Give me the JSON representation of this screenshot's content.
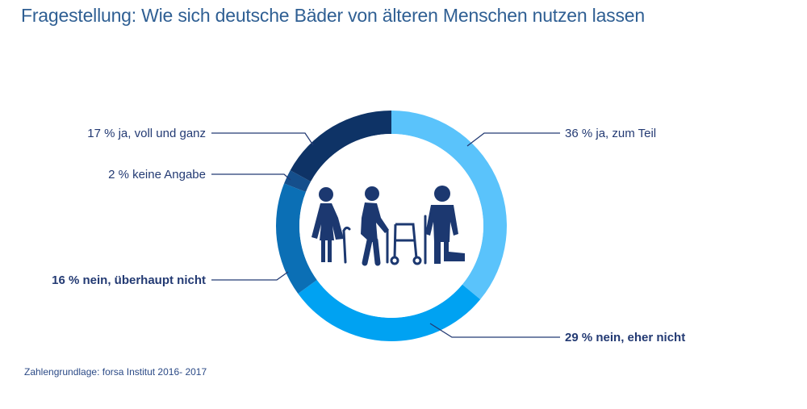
{
  "title": "Fragestellung: Wie sich deutsche Bäder von älteren Menschen nutzen lassen",
  "source": "Zahlengrundlage: forsa Institut 2016- 2017",
  "chart_data": {
    "type": "pie",
    "style": "donut",
    "center_icon": "elderly-people-icon",
    "slices": [
      {
        "label": "36 % ja, zum Teil",
        "value": 36,
        "color": "#5ac3fb",
        "bold": false
      },
      {
        "label": "29 % nein, eher nicht",
        "value": 29,
        "color": "#00a2f2",
        "bold": true
      },
      {
        "label": "16 % nein, überhaupt nicht",
        "value": 16,
        "color": "#0b6fb5",
        "bold": true
      },
      {
        "label": "2 % keine Angabe",
        "value": 2,
        "color": "#154f8c",
        "bold": false
      },
      {
        "label": "17 % ja, voll und ganz",
        "value": 17,
        "color": "#0e3366",
        "bold": false
      }
    ]
  }
}
